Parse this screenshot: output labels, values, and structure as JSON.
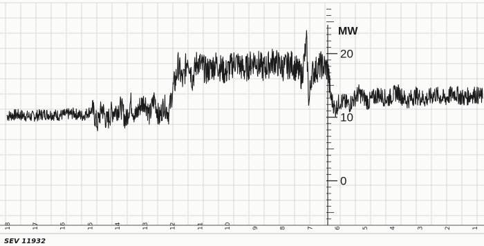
{
  "chart_data": {
    "type": "line",
    "caption": "SEV 11932",
    "unit_label": "MW",
    "y_tick_labels": [
      "20",
      "10",
      "0"
    ],
    "ylim": [
      -7,
      28
    ],
    "grid": true,
    "x_tick_labels": [
      "18",
      "17",
      "16",
      "15",
      "14",
      "13",
      "12",
      "11",
      "10",
      "9",
      "8",
      "7",
      "6",
      "5",
      "4",
      "3",
      "2",
      "1"
    ],
    "series": [
      {
        "values_description_free": true,
        "points": [
          [
            0.0,
            10.2
          ],
          [
            0.02,
            10.4
          ],
          [
            0.05,
            10.1
          ],
          [
            0.08,
            10.5
          ],
          [
            0.11,
            10.3
          ],
          [
            0.14,
            10.6
          ],
          [
            0.16,
            10.2
          ],
          [
            0.18,
            11.2
          ],
          [
            0.19,
            8.9
          ],
          [
            0.2,
            11.5
          ],
          [
            0.21,
            9.2
          ],
          [
            0.22,
            10.8
          ],
          [
            0.24,
            11.6
          ],
          [
            0.25,
            9.4
          ],
          [
            0.26,
            12.4
          ],
          [
            0.27,
            10.0
          ],
          [
            0.28,
            11.8
          ],
          [
            0.29,
            12.6
          ],
          [
            0.3,
            10.2
          ],
          [
            0.31,
            13.0
          ],
          [
            0.32,
            9.8
          ],
          [
            0.33,
            12.0
          ],
          [
            0.34,
            10.6
          ],
          [
            0.35,
            14.8
          ],
          [
            0.355,
            15.9
          ],
          [
            0.36,
            18.2
          ],
          [
            0.37,
            15.5
          ],
          [
            0.38,
            19.6
          ],
          [
            0.39,
            16.0
          ],
          [
            0.4,
            18.8
          ],
          [
            0.42,
            17.2
          ],
          [
            0.44,
            18.4
          ],
          [
            0.46,
            17.0
          ],
          [
            0.48,
            18.8
          ],
          [
            0.5,
            17.4
          ],
          [
            0.52,
            19.0
          ],
          [
            0.54,
            17.6
          ],
          [
            0.56,
            18.9
          ],
          [
            0.58,
            17.8
          ],
          [
            0.6,
            18.4
          ],
          [
            0.62,
            16.4
          ],
          [
            0.63,
            21.8
          ],
          [
            0.635,
            12.0
          ],
          [
            0.64,
            16.8
          ],
          [
            0.66,
            18.2
          ],
          [
            0.675,
            17.6
          ],
          [
            0.68,
            13.4
          ],
          [
            0.69,
            11.2
          ],
          [
            0.7,
            12.6
          ],
          [
            0.72,
            12.0
          ],
          [
            0.74,
            13.8
          ],
          [
            0.76,
            12.4
          ],
          [
            0.78,
            13.6
          ],
          [
            0.8,
            12.8
          ],
          [
            0.82,
            14.0
          ],
          [
            0.84,
            12.6
          ],
          [
            0.86,
            13.4
          ],
          [
            0.88,
            12.8
          ],
          [
            0.9,
            13.6
          ],
          [
            0.92,
            12.9
          ],
          [
            0.94,
            13.8
          ],
          [
            0.96,
            13.0
          ],
          [
            0.98,
            13.6
          ],
          [
            1.0,
            13.2
          ]
        ]
      }
    ]
  },
  "colors": {
    "paper": "#f7f7f5",
    "grid": "#c9c9c9",
    "trace": "#1b1b1b",
    "axis": "#222222"
  }
}
